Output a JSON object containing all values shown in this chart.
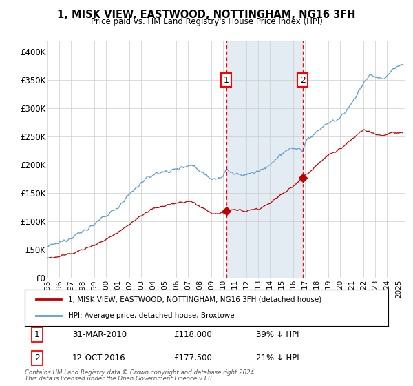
{
  "title": "1, MISK VIEW, EASTWOOD, NOTTINGHAM, NG16 3FH",
  "subtitle": "Price paid vs. HM Land Registry's House Price Index (HPI)",
  "ylabel_vals": [
    "£0",
    "£50K",
    "£100K",
    "£150K",
    "£200K",
    "£250K",
    "£300K",
    "£350K",
    "£400K"
  ],
  "ylim": [
    0,
    420000
  ],
  "yticks": [
    0,
    50000,
    100000,
    150000,
    200000,
    250000,
    300000,
    350000,
    400000
  ],
  "xlim_start": 1995.0,
  "xlim_end": 2025.5,
  "sale1_date": 2010.25,
  "sale1_price": 118000,
  "sale1_label": "1",
  "sale1_hpi_pct": "39% ↓ HPI",
  "sale1_date_str": "31-MAR-2010",
  "sale2_date": 2016.79,
  "sale2_price": 177500,
  "sale2_label": "2",
  "sale2_hpi_pct": "21% ↓ HPI",
  "sale2_date_str": "12-OCT-2016",
  "hpi_color": "#5b9bd5",
  "price_color": "#c00000",
  "sale_dot_color": "#c00000",
  "legend_label_price": "1, MISK VIEW, EASTWOOD, NOTTINGHAM, NG16 3FH (detached house)",
  "legend_label_hpi": "HPI: Average price, detached house, Broxtowe",
  "footer1": "Contains HM Land Registry data © Crown copyright and database right 2024.",
  "footer2": "This data is licensed under the Open Government Licence v3.0.",
  "background_color": "#ffffff",
  "shaded_color": "#dce6f1",
  "grid_color": "#cccccc"
}
